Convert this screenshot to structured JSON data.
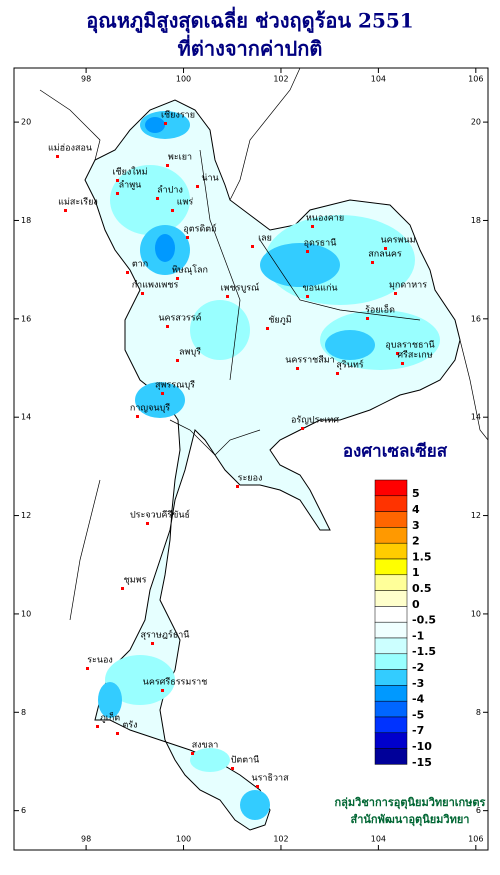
{
  "header": {
    "title": "อุณหภูมิสูงสุดเฉลี่ย ช่วงฤดูร้อน 2551",
    "subtitle": "ที่ต่างจากค่าปกติ"
  },
  "map": {
    "lon_lim": [
      96.52,
      106.25
    ],
    "lat_lim": [
      5.2,
      21.1
    ],
    "lon_ticks": [
      98,
      100,
      102,
      104,
      106
    ],
    "lat_ticks": [
      6,
      8,
      10,
      12,
      14,
      16,
      18,
      20
    ]
  },
  "legend": {
    "title": "องศาเซลเซียส",
    "labels": [
      5,
      4,
      3,
      2,
      1.5,
      1,
      0.5,
      0,
      -0.5,
      -1,
      -1.5,
      -2,
      -3,
      -4,
      -5,
      -7,
      -10,
      -15
    ],
    "colors": [
      "#ff0000",
      "#ff3300",
      "#ff6600",
      "#ff9900",
      "#ffcc00",
      "#ffff00",
      "#ffff99",
      "#ffffcc",
      "#ffffff",
      "#f0ffff",
      "#ccffff",
      "#99ffff",
      "#33ccff",
      "#0099ff",
      "#0066ff",
      "#0033ff",
      "#0000cc",
      "#000099"
    ]
  },
  "credits": [
    "กลุ่มวิชาการอุตุนิยมวิทยาเกษตร",
    "สำนักพัฒนาอุตุนิยมวิทยา"
  ],
  "places": [
    "เชียงราย",
    "แม่ฮ่องสอน",
    "พะเยา",
    "น่าน",
    "เชียงใหม่",
    "ลำพูน",
    "ลำปาง",
    "แพร่",
    "แม่สะเรียง",
    "อุตรดิตถ์",
    "หนองคาย",
    "อุดรธานี",
    "นครพนม",
    "เลย",
    "สกลนคร",
    "ตาก",
    "พิษณุโลก",
    "มุกดาหาร",
    "ขอนแก่น",
    "กำแพงเพชร",
    "เพชรบูรณ์",
    "นครสวรรค์",
    "ชัยภูมิ",
    "ร้อยเอ็ด",
    "อุบลราชธานี",
    "ลพบุรี",
    "นครราชสีมา",
    "สุรินทร์",
    "ศรีสะเกษ",
    "กาญจนบุรี",
    "สุพรรณบุรี",
    "อรัญประเทศ",
    "ระยอง",
    "ประจวบคีรีขันธ์",
    "ชุมพร",
    "ระนอง",
    "สุราษฎร์ธานี",
    "นครศรีธรรมราช",
    "ภูเก็ต",
    "ตรัง",
    "สงขลา",
    "ปัตตานี",
    "นราธิวาส"
  ]
}
